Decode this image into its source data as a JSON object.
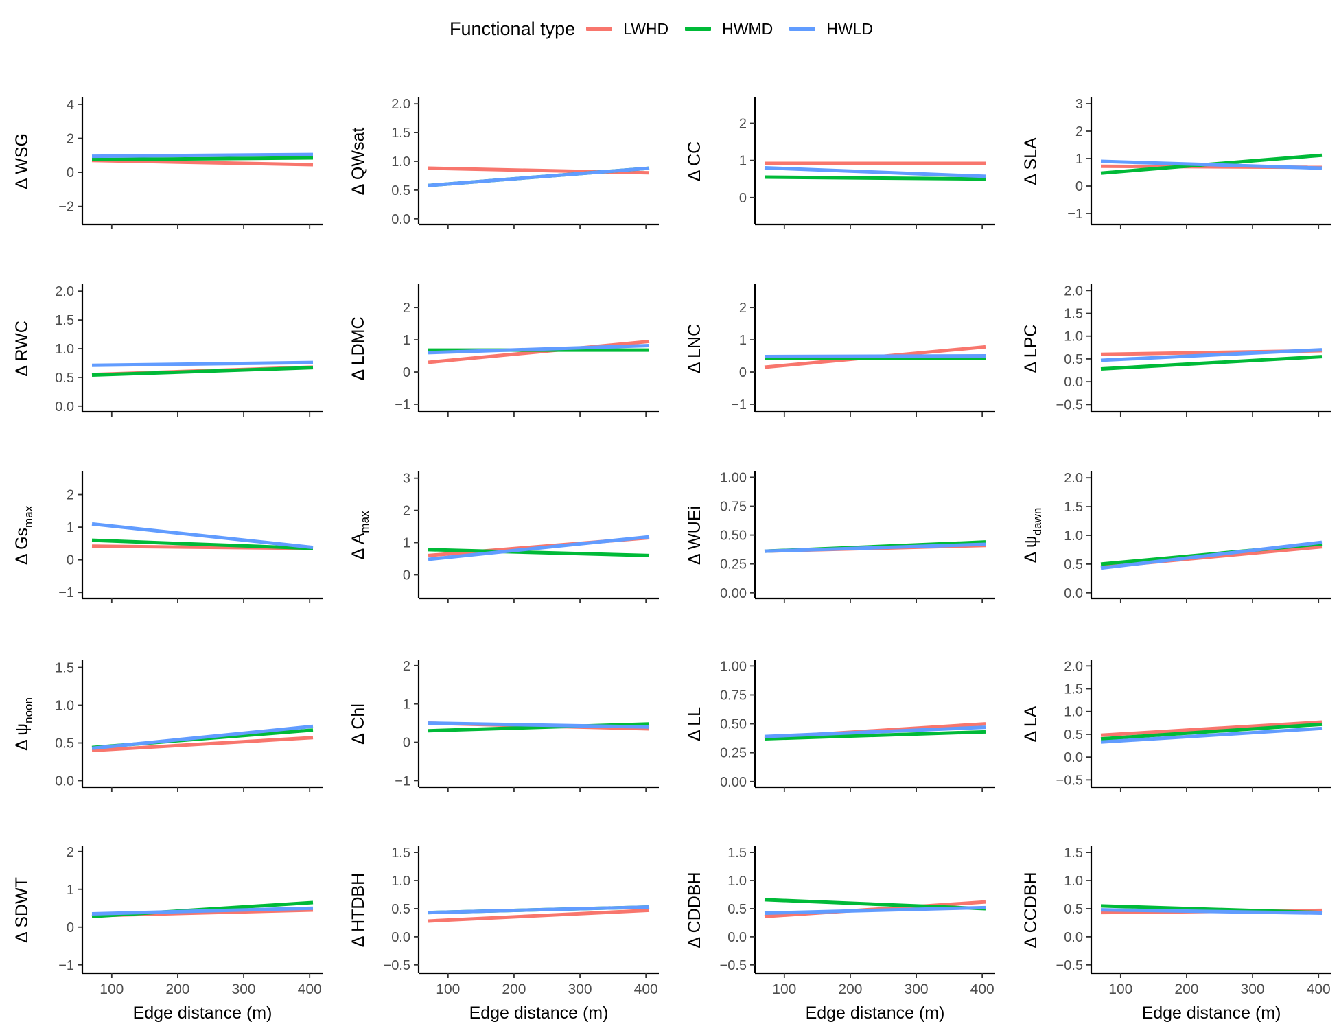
{
  "legend": {
    "title": "Functional type",
    "items": [
      {
        "label": "LWHD",
        "color": "#F8766D"
      },
      {
        "label": "HWMD",
        "color": "#00BA38"
      },
      {
        "label": "HWLD",
        "color": "#619CFF"
      }
    ]
  },
  "chart_data": {
    "type": "line",
    "layout": "5x4 facet grid",
    "xlabel": "Edge distance (m)",
    "x_ticks": [
      100,
      200,
      300,
      400
    ],
    "xlim": [
      70,
      405
    ],
    "series_names": [
      "LWHD",
      "HWMD",
      "HWLD"
    ],
    "colors": {
      "LWHD": "#F8766D",
      "HWMD": "#00BA38",
      "HWLD": "#619CFF"
    },
    "panels": [
      {
        "delta": "Δ",
        "ylabel": "WSG",
        "sub": "",
        "ylim": [
          -2.9,
          4.2
        ],
        "yticks": [
          "−2",
          "0",
          "2",
          "4"
        ],
        "ytick_vals": [
          -2,
          0,
          2,
          4
        ],
        "series": {
          "LWHD": [
            0.7,
            0.45
          ],
          "HWMD": [
            0.75,
            0.85
          ],
          "HWLD": [
            0.95,
            1.05
          ]
        }
      },
      {
        "delta": "Δ",
        "ylabel": "QWsat",
        "sub": "",
        "ylim": [
          -0.05,
          2.05
        ],
        "yticks": [
          "0.0",
          "0.5",
          "1.0",
          "1.5",
          "2.0"
        ],
        "ytick_vals": [
          0,
          0.5,
          1,
          1.5,
          2
        ],
        "series": {
          "LWHD": [
            0.88,
            0.8
          ],
          "HWMD": [
            0.58,
            0.88
          ],
          "HWLD": [
            0.58,
            0.88
          ]
        }
      },
      {
        "delta": "Δ",
        "ylabel": "CC",
        "sub": "",
        "ylim": [
          -0.65,
          2.6
        ],
        "yticks": [
          "0",
          "1",
          "2"
        ],
        "ytick_vals": [
          0,
          1,
          2
        ],
        "series": {
          "LWHD": [
            0.92,
            0.92
          ],
          "HWMD": [
            0.55,
            0.5
          ],
          "HWLD": [
            0.8,
            0.57
          ]
        }
      },
      {
        "delta": "Δ",
        "ylabel": "SLA",
        "sub": "",
        "ylim": [
          -1.3,
          3.1
        ],
        "yticks": [
          "−1",
          "0",
          "1",
          "2",
          "3"
        ],
        "ytick_vals": [
          -1,
          0,
          1,
          2,
          3
        ],
        "series": {
          "LWHD": [
            0.72,
            0.68
          ],
          "HWMD": [
            0.47,
            1.12
          ],
          "HWLD": [
            0.9,
            0.65
          ]
        }
      },
      {
        "delta": "Δ",
        "ylabel": "RWC",
        "sub": "",
        "ylim": [
          -0.05,
          2.05
        ],
        "yticks": [
          "0.0",
          "0.5",
          "1.0",
          "1.5",
          "2.0"
        ],
        "ytick_vals": [
          0,
          0.5,
          1,
          1.5,
          2
        ],
        "series": {
          "LWHD": [
            0.55,
            0.68
          ],
          "HWMD": [
            0.54,
            0.67
          ],
          "HWLD": [
            0.71,
            0.76
          ]
        }
      },
      {
        "delta": "Δ",
        "ylabel": "LDMC",
        "sub": "",
        "ylim": [
          -1.15,
          2.6
        ],
        "yticks": [
          "−1",
          "0",
          "1",
          "2"
        ],
        "ytick_vals": [
          -1,
          0,
          1,
          2
        ],
        "series": {
          "LWHD": [
            0.3,
            0.95
          ],
          "HWMD": [
            0.68,
            0.68
          ],
          "HWLD": [
            0.6,
            0.82
          ]
        }
      },
      {
        "delta": "Δ",
        "ylabel": "LNC",
        "sub": "",
        "ylim": [
          -1.15,
          2.6
        ],
        "yticks": [
          "−1",
          "0",
          "1",
          "2"
        ],
        "ytick_vals": [
          -1,
          0,
          1,
          2
        ],
        "series": {
          "LWHD": [
            0.15,
            0.78
          ],
          "HWMD": [
            0.43,
            0.43
          ],
          "HWLD": [
            0.48,
            0.5
          ]
        }
      },
      {
        "delta": "Δ",
        "ylabel": "LPC",
        "sub": "",
        "ylim": [
          -0.6,
          2.05
        ],
        "yticks": [
          "−0.5",
          "0.0",
          "0.5",
          "1.0",
          "1.5",
          "2.0"
        ],
        "ytick_vals": [
          -0.5,
          0,
          0.5,
          1,
          1.5,
          2
        ],
        "series": {
          "LWHD": [
            0.6,
            0.68
          ],
          "HWMD": [
            0.28,
            0.55
          ],
          "HWLD": [
            0.47,
            0.7
          ]
        }
      },
      {
        "delta": "Δ",
        "ylabel": "Gs",
        "sub": "max",
        "ylim": [
          -1.1,
          2.6
        ],
        "yticks": [
          "−1",
          "0",
          "1",
          "2"
        ],
        "ytick_vals": [
          -1,
          0,
          1,
          2
        ],
        "series": {
          "LWHD": [
            0.42,
            0.35
          ],
          "HWMD": [
            0.6,
            0.35
          ],
          "HWLD": [
            1.1,
            0.38
          ]
        }
      },
      {
        "delta": "Δ",
        "ylabel": "A",
        "sub": "max",
        "ylim": [
          -0.65,
          3.1
        ],
        "yticks": [
          "0",
          "1",
          "2",
          "3"
        ],
        "ytick_vals": [
          0,
          1,
          2,
          3
        ],
        "series": {
          "LWHD": [
            0.6,
            1.15
          ],
          "HWMD": [
            0.78,
            0.6
          ],
          "HWLD": [
            0.48,
            1.18
          ]
        }
      },
      {
        "delta": "Δ",
        "ylabel": "WUEi",
        "sub": "",
        "ylim": [
          -0.025,
          1.02
        ],
        "yticks": [
          "0.00",
          "0.25",
          "0.50",
          "0.75",
          "1.00"
        ],
        "ytick_vals": [
          0,
          0.25,
          0.5,
          0.75,
          1
        ],
        "series": {
          "LWHD": [
            0.36,
            0.41
          ],
          "HWMD": [
            0.36,
            0.44
          ],
          "HWLD": [
            0.36,
            0.42
          ]
        }
      },
      {
        "delta": "Δ",
        "ylabel": "ψ",
        "sub": "dawn",
        "ylim": [
          -0.05,
          2.05
        ],
        "yticks": [
          "0.0",
          "0.5",
          "1.0",
          "1.5",
          "2.0"
        ],
        "ytick_vals": [
          0,
          0.5,
          1,
          1.5,
          2
        ],
        "series": {
          "LWHD": [
            0.45,
            0.8
          ],
          "HWMD": [
            0.5,
            0.85
          ],
          "HWLD": [
            0.43,
            0.88
          ]
        }
      },
      {
        "delta": "Δ",
        "ylabel": "ψ",
        "sub": "noon",
        "ylim": [
          -0.05,
          1.55
        ],
        "yticks": [
          "0.0",
          "0.5",
          "1.0",
          "1.5"
        ],
        "ytick_vals": [
          0,
          0.5,
          1,
          1.5
        ],
        "series": {
          "LWHD": [
            0.4,
            0.57
          ],
          "HWMD": [
            0.44,
            0.67
          ],
          "HWLD": [
            0.43,
            0.72
          ]
        }
      },
      {
        "delta": "Δ",
        "ylabel": "Chl",
        "sub": "",
        "ylim": [
          -1.1,
          2.05
        ],
        "yticks": [
          "−1",
          "0",
          "1",
          "2"
        ],
        "ytick_vals": [
          -1,
          0,
          1,
          2
        ],
        "series": {
          "LWHD": [
            0.5,
            0.35
          ],
          "HWMD": [
            0.3,
            0.48
          ],
          "HWLD": [
            0.5,
            0.4
          ]
        }
      },
      {
        "delta": "Δ",
        "ylabel": "LL",
        "sub": "",
        "ylim": [
          -0.025,
          1.02
        ],
        "yticks": [
          "0.00",
          "0.25",
          "0.50",
          "0.75",
          "1.00"
        ],
        "ytick_vals": [
          0,
          0.25,
          0.5,
          0.75,
          1
        ],
        "series": {
          "LWHD": [
            0.38,
            0.5
          ],
          "HWMD": [
            0.37,
            0.43
          ],
          "HWLD": [
            0.39,
            0.47
          ]
        }
      },
      {
        "delta": "Δ",
        "ylabel": "LA",
        "sub": "",
        "ylim": [
          -0.6,
          2.05
        ],
        "yticks": [
          "−0.5",
          "0.0",
          "0.5",
          "1.0",
          "1.5",
          "2.0"
        ],
        "ytick_vals": [
          -0.5,
          0,
          0.5,
          1,
          1.5,
          2
        ],
        "series": {
          "LWHD": [
            0.48,
            0.77
          ],
          "HWMD": [
            0.4,
            0.72
          ],
          "HWLD": [
            0.33,
            0.63
          ]
        }
      },
      {
        "delta": "Δ",
        "ylabel": "SDWT",
        "sub": "",
        "ylim": [
          -1.15,
          2.05
        ],
        "yticks": [
          "−1",
          "0",
          "1",
          "2"
        ],
        "ytick_vals": [
          -1,
          0,
          1,
          2
        ],
        "series": {
          "LWHD": [
            0.3,
            0.45
          ],
          "HWMD": [
            0.28,
            0.65
          ],
          "HWLD": [
            0.35,
            0.5
          ]
        }
      },
      {
        "delta": "Δ",
        "ylabel": "HTDBH",
        "sub": "",
        "ylim": [
          -0.6,
          1.55
        ],
        "yticks": [
          "−0.5",
          "0.0",
          "0.5",
          "1.0",
          "1.5"
        ],
        "ytick_vals": [
          -0.5,
          0,
          0.5,
          1,
          1.5
        ],
        "series": {
          "LWHD": [
            0.28,
            0.47
          ],
          "HWMD": [
            0.43,
            0.53
          ],
          "HWLD": [
            0.43,
            0.53
          ]
        }
      },
      {
        "delta": "Δ",
        "ylabel": "CDDBH",
        "sub": "",
        "ylim": [
          -0.6,
          1.55
        ],
        "yticks": [
          "−0.5",
          "0.0",
          "0.5",
          "1.0",
          "1.5"
        ],
        "ytick_vals": [
          -0.5,
          0,
          0.5,
          1,
          1.5
        ],
        "series": {
          "LWHD": [
            0.36,
            0.62
          ],
          "HWMD": [
            0.66,
            0.5
          ],
          "HWLD": [
            0.42,
            0.52
          ]
        }
      },
      {
        "delta": "Δ",
        "ylabel": "CCDBH",
        "sub": "",
        "ylim": [
          -0.6,
          1.55
        ],
        "yticks": [
          "−0.5",
          "0.0",
          "0.5",
          "1.0",
          "1.5"
        ],
        "ytick_vals": [
          -0.5,
          0,
          0.5,
          1,
          1.5
        ],
        "series": {
          "LWHD": [
            0.43,
            0.47
          ],
          "HWMD": [
            0.55,
            0.43
          ],
          "HWLD": [
            0.48,
            0.42
          ]
        }
      }
    ]
  }
}
